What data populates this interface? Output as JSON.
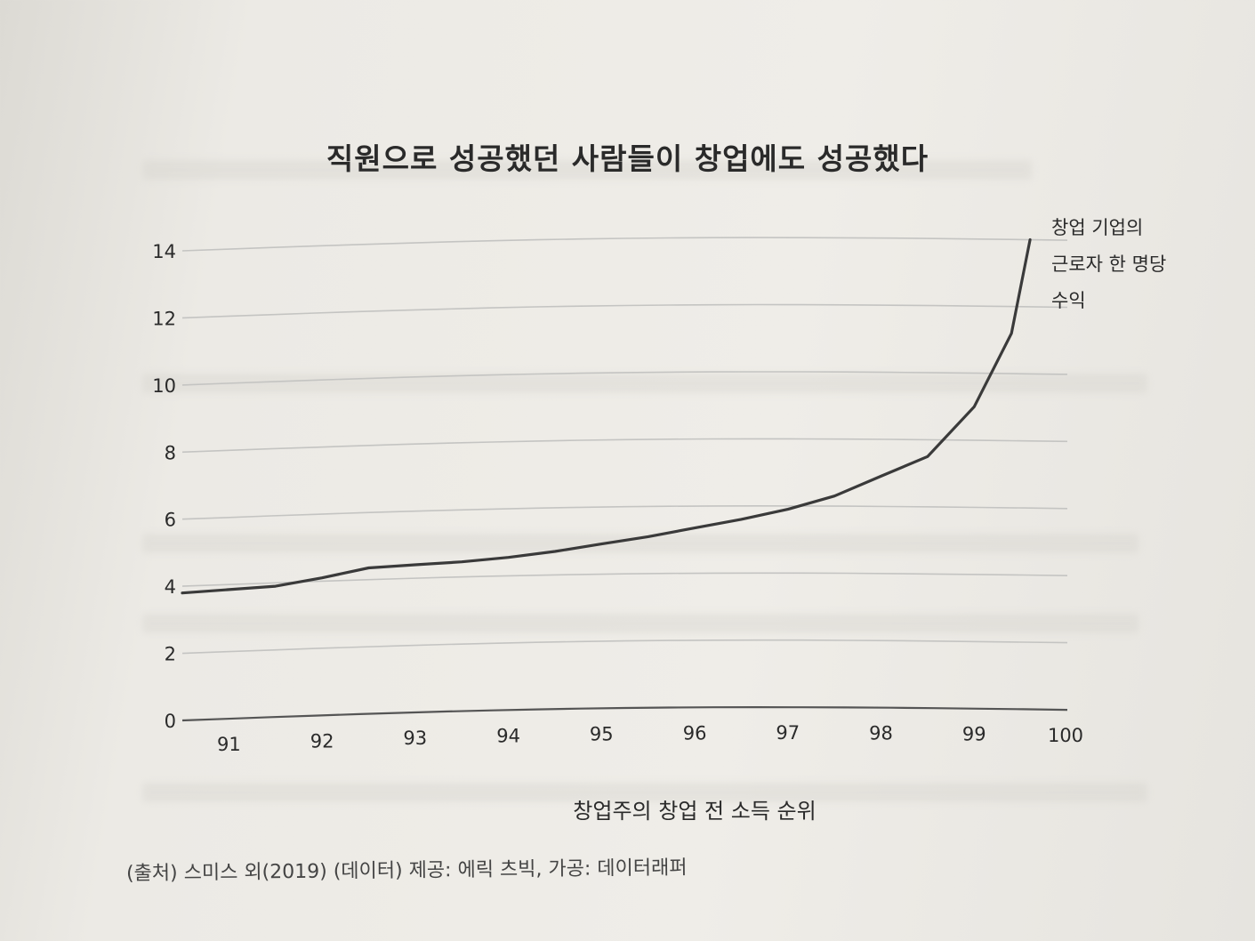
{
  "chart_data": {
    "type": "line",
    "title": "직원으로 성공했던 사람들이 창업에도 성공했다",
    "xlabel": "창업주의 창업 전 소득 순위",
    "ylabel": "",
    "x_ticks": [
      "91",
      "92",
      "93",
      "94",
      "95",
      "96",
      "97",
      "98",
      "99",
      "100"
    ],
    "y_ticks": [
      "0",
      "2",
      "4",
      "6",
      "8",
      "10",
      "12",
      "14"
    ],
    "xlim": [
      90.5,
      100
    ],
    "ylim": [
      0,
      14
    ],
    "grid": true,
    "series": [
      {
        "name": "창업 기업의 근로자 한 명당 수익",
        "label_lines": [
          "창업 기업의",
          "근로자 한 명당",
          "수익"
        ],
        "x": [
          90.5,
          91,
          91.5,
          92,
          92.5,
          93,
          93.5,
          94,
          94.5,
          95,
          95.5,
          96,
          96.5,
          97,
          97.5,
          98,
          98.5,
          99,
          99.4,
          99.6
        ],
        "values": [
          3.8,
          3.85,
          3.9,
          4.1,
          4.35,
          4.4,
          4.45,
          4.55,
          4.7,
          4.9,
          5.1,
          5.35,
          5.6,
          5.9,
          6.3,
          6.9,
          7.5,
          9.0,
          11.2,
          14.0
        ]
      }
    ]
  },
  "source_note": "(출처) 스미스 외(2019) (데이터) 제공: 에릭 츠빅, 가공: 데이터래퍼",
  "colors": {
    "line": "#3a3a3a",
    "grid": "#c4c4c2",
    "text": "#2a2a2a"
  }
}
